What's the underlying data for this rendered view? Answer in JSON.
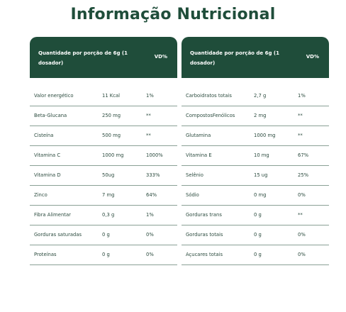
{
  "title": "Informação Nutricional",
  "left_table": {
    "header_quantity": "Quantidade por porção de 6g (1 dosador)",
    "header_vd": "VD%",
    "rows": [
      {
        "name": "Valor energético",
        "amount": "11 Kcal",
        "vd": "1%"
      },
      {
        "name": "Beta-Glucana",
        "amount": "250 mg",
        "vd": "**"
      },
      {
        "name": "Cisteína",
        "amount": "500 mg",
        "vd": "**"
      },
      {
        "name": "Vitamina C",
        "amount": "1000 mg",
        "vd": "1000%"
      },
      {
        "name": "Vitamina D",
        "amount": "50ug",
        "vd": "333%"
      },
      {
        "name": "Zinco",
        "amount": "7 mg",
        "vd": "64%"
      },
      {
        "name": "Fibra Alimentar",
        "amount": "0,3 g",
        "vd": "1%"
      },
      {
        "name": "Gorduras saturadas",
        "amount": "0 g",
        "vd": "0%"
      },
      {
        "name": "Proteínas",
        "amount": "0 g",
        "vd": "0%"
      }
    ]
  },
  "right_table": {
    "header_quantity": "Quantidade por porção de 6g (1 dosador)",
    "header_vd": "VD%",
    "rows": [
      {
        "name": "Carboidratos totais",
        "amount": "2,7 g",
        "vd": "1%"
      },
      {
        "name": "CompostosFenólicos",
        "amount": "2 mg",
        "vd": "**"
      },
      {
        "name": "Glutamina",
        "amount": "1000 mg",
        "vd": "**"
      },
      {
        "name": "Vitamina E",
        "amount": "10 mg",
        "vd": "67%"
      },
      {
        "name": "Selênio",
        "amount": "15 ug",
        "vd": "25%"
      },
      {
        "name": "Sódio",
        "amount": "0 mg",
        "vd": "0%"
      },
      {
        "name": "Gorduras trans",
        "amount": "0 g",
        "vd": "**"
      },
      {
        "name": "Gorduras totais",
        "amount": "0 g",
        "vd": "0%"
      },
      {
        "name": "Açucares totais",
        "amount": "0 g",
        "vd": "0%"
      }
    ]
  }
}
